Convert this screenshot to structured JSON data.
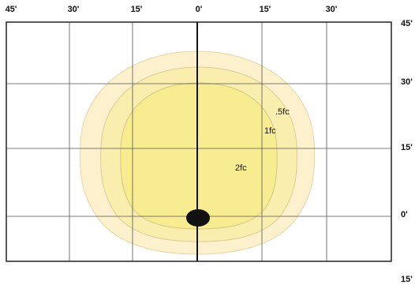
{
  "top_labels": [
    "45'",
    "30'",
    "15'",
    "0'",
    "15'",
    "30'"
  ],
  "right_labels": [
    "45'",
    "30'",
    "15'",
    "0'",
    "15'"
  ],
  "contours": [
    ".5fc",
    "1fc",
    "2fc"
  ]
}
